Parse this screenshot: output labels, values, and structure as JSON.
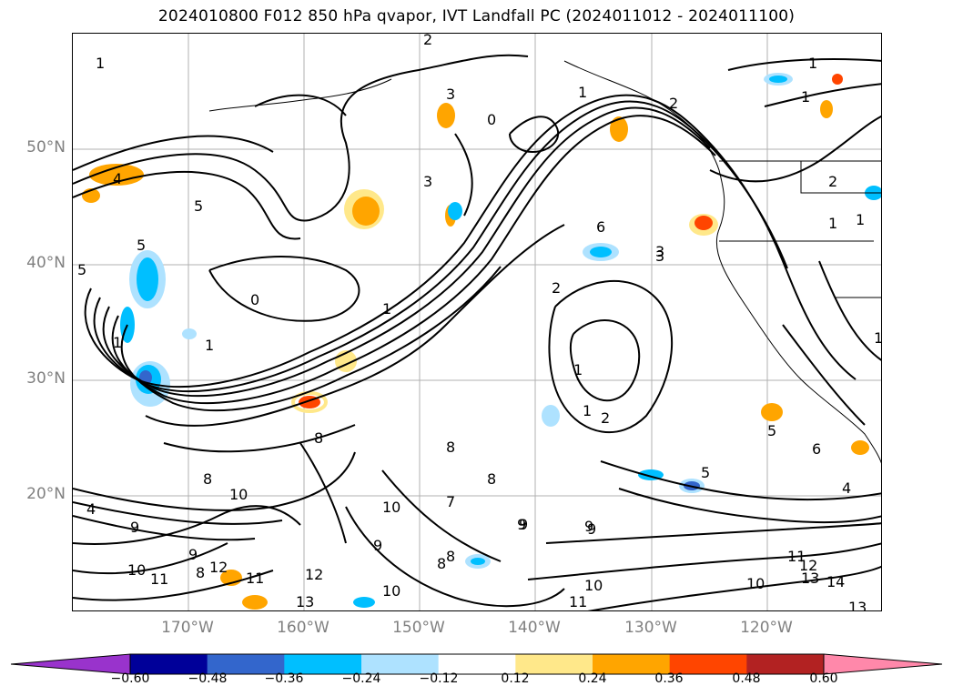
{
  "title": "2024010800 F012 850 hPa qvapor, IVT Landfall PC (2024011012 - 2024011100)",
  "lat_labels": [
    "50°N",
    "40°N",
    "30°N",
    "20°N"
  ],
  "lon_labels": [
    "170°W",
    "160°W",
    "150°W",
    "140°W",
    "130°W",
    "120°W"
  ],
  "colorbar": {
    "colors": [
      "#9933cc",
      "#000099",
      "#3366cc",
      "#00bfff",
      "#aee2ff",
      "#ffffff",
      "#ffe88a",
      "#ffa500",
      "#ff4500",
      "#b22222",
      "#ff88aa"
    ],
    "tick_labels": [
      "−0.60",
      "−0.48",
      "−0.36",
      "−0.24",
      "−0.12",
      "0.12",
      "0.24",
      "0.36",
      "0.48",
      "0.60"
    ]
  },
  "contour_labels": [
    "1",
    "2",
    "3",
    "0",
    "5",
    "4",
    "5",
    "5",
    "1",
    "1",
    "1",
    "2",
    "3",
    "1",
    "3",
    "2",
    "1",
    "4",
    "8",
    "8",
    "9",
    "10",
    "10",
    "11",
    "12",
    "13",
    "9",
    "9",
    "8",
    "10",
    "11",
    "12",
    "13",
    "14",
    "13",
    "10",
    "7",
    "6",
    "5",
    "4",
    "5",
    "9",
    "8",
    "10",
    "11",
    "12",
    "11",
    "10",
    "9",
    "8",
    "8",
    "8",
    "9",
    "9",
    "1",
    "2",
    "1",
    "1",
    "1",
    "1",
    "6",
    "2",
    "3",
    "1",
    "0"
  ],
  "fill_colors": {
    "light_blue": "#aee2ff",
    "blue": "#00bfff",
    "dark_blue": "#3366cc",
    "yellow": "#ffe88a",
    "orange": "#ffa500",
    "red_orange": "#ff4500"
  }
}
